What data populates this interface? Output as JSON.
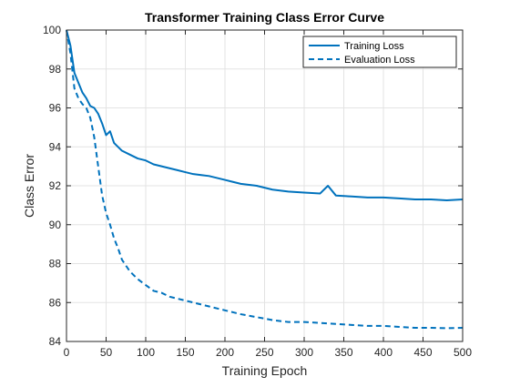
{
  "chart_data": {
    "type": "line",
    "title": "Transformer Training Class Error Curve",
    "xlabel": "Training Epoch",
    "ylabel": "Class Error",
    "xlim": [
      0,
      500
    ],
    "ylim": [
      84,
      100
    ],
    "xticks": [
      0,
      50,
      100,
      150,
      200,
      250,
      300,
      350,
      400,
      450,
      500
    ],
    "yticks": [
      84,
      86,
      88,
      90,
      92,
      94,
      96,
      98,
      100
    ],
    "xtick_labels": [
      "0",
      "50",
      "100",
      "150",
      "200",
      "250",
      "300",
      "350",
      "400",
      "450",
      "500"
    ],
    "ytick_labels": [
      "84",
      "86",
      "88",
      "90",
      "92",
      "94",
      "96",
      "98",
      "100"
    ],
    "grid": true,
    "legend_position": "top-right",
    "series": [
      {
        "name": "Training Loss",
        "style": "solid",
        "color": "#0072BD",
        "x": [
          0,
          5,
          10,
          15,
          20,
          25,
          30,
          35,
          40,
          45,
          50,
          55,
          60,
          70,
          80,
          90,
          100,
          110,
          120,
          130,
          140,
          150,
          160,
          170,
          180,
          190,
          200,
          220,
          240,
          260,
          280,
          300,
          320,
          330,
          340,
          360,
          380,
          400,
          420,
          440,
          460,
          480,
          500
        ],
        "y": [
          100,
          99.2,
          97.8,
          97.3,
          96.8,
          96.5,
          96.1,
          96.0,
          95.7,
          95.2,
          94.6,
          94.8,
          94.2,
          93.8,
          93.6,
          93.4,
          93.3,
          93.1,
          93.0,
          92.9,
          92.8,
          92.7,
          92.6,
          92.55,
          92.5,
          92.4,
          92.3,
          92.1,
          92.0,
          91.8,
          91.7,
          91.65,
          91.6,
          92.0,
          91.5,
          91.45,
          91.4,
          91.4,
          91.35,
          91.3,
          91.3,
          91.25,
          91.3
        ]
      },
      {
        "name": "Evaluation Loss",
        "style": "dashed",
        "color": "#0072BD",
        "x": [
          0,
          5,
          10,
          15,
          20,
          25,
          30,
          35,
          40,
          45,
          50,
          55,
          60,
          65,
          70,
          80,
          90,
          100,
          110,
          120,
          130,
          140,
          150,
          160,
          170,
          180,
          190,
          200,
          220,
          240,
          260,
          280,
          300,
          320,
          340,
          360,
          380,
          400,
          420,
          440,
          460,
          480,
          500
        ],
        "y": [
          100,
          98.8,
          97.0,
          96.5,
          96.2,
          96.0,
          95.5,
          94.5,
          93.0,
          91.5,
          90.6,
          90.0,
          89.3,
          88.8,
          88.2,
          87.6,
          87.2,
          86.9,
          86.6,
          86.5,
          86.3,
          86.2,
          86.1,
          86.0,
          85.9,
          85.8,
          85.7,
          85.6,
          85.4,
          85.25,
          85.1,
          85.0,
          85.0,
          84.95,
          84.9,
          84.85,
          84.8,
          84.8,
          84.75,
          84.7,
          84.7,
          84.68,
          84.7
        ]
      }
    ]
  }
}
